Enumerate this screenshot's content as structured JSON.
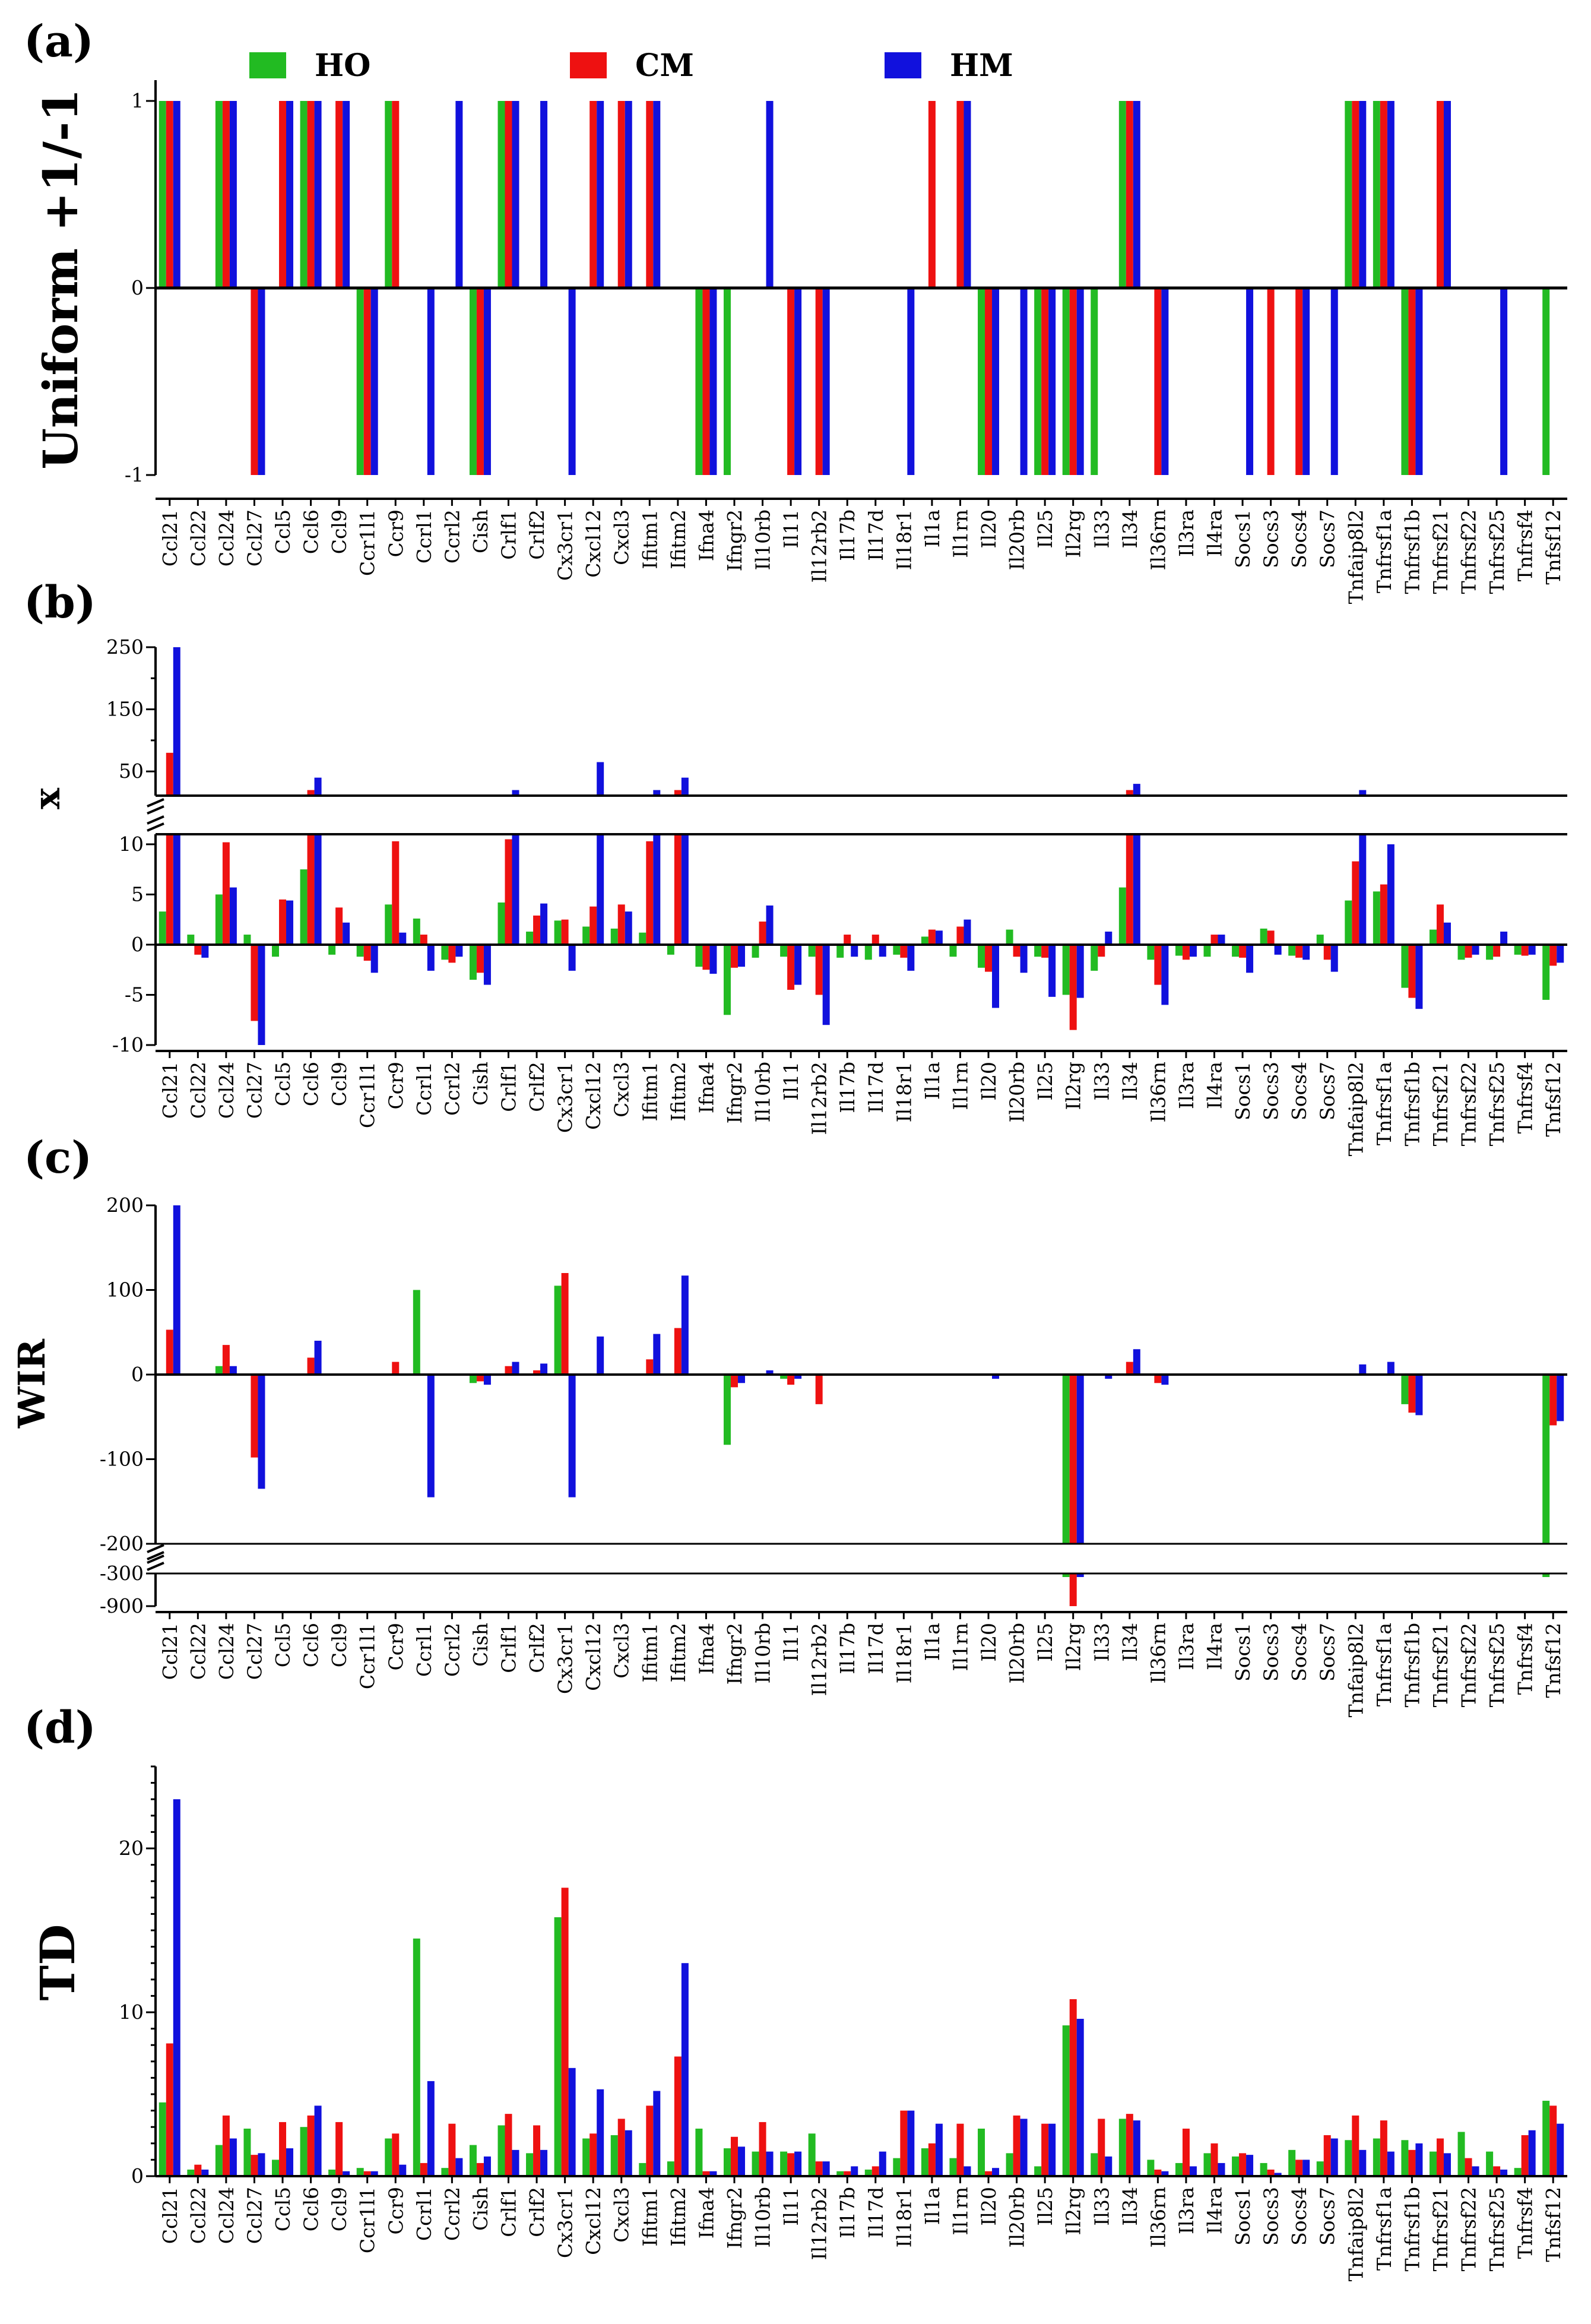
{
  "legend": [
    {
      "name": "HO",
      "color": "#22bb22"
    },
    {
      "name": "CM",
      "color": "#ee1111"
    },
    {
      "name": "HM",
      "color": "#1111dd"
    }
  ],
  "chart_data": [
    {
      "panel": "(a)",
      "type": "bar",
      "ylabel": "Uniform +1/-1",
      "ylim": [
        -1,
        1
      ],
      "yticks": [
        1,
        0,
        -1
      ],
      "categories": [
        "Ccl21",
        "Ccl22",
        "Ccl24",
        "Ccl27",
        "Ccl5",
        "Ccl6",
        "Ccl9",
        "Ccr1l1",
        "Ccr9",
        "Ccrl1",
        "Ccrl2",
        "Cish",
        "Crlf1",
        "Crlf2",
        "Cx3cr1",
        "Cxcl12",
        "Cxcl3",
        "Ifitm1",
        "Ifitm2",
        "Ifna4",
        "Ifngr2",
        "Il10rb",
        "Il11",
        "Il12rb2",
        "Il17b",
        "Il17d",
        "Il18r1",
        "Il1a",
        "Il1rn",
        "Il20",
        "Il20rb",
        "Il25",
        "Il2rg",
        "Il33",
        "Il34",
        "Il36rn",
        "Il3ra",
        "Il4ra",
        "Socs1",
        "Socs3",
        "Socs4",
        "Socs7",
        "Tnfaip8l2",
        "Tnfrsf1a",
        "Tnfrsf1b",
        "Tnfrsf21",
        "Tnfrsf22",
        "Tnfrsf25",
        "Tnfrsf4",
        "Tnfsf12"
      ],
      "series": [
        {
          "name": "HO",
          "values": [
            1,
            0,
            1,
            0,
            0,
            1,
            0,
            -1,
            1,
            0,
            0,
            -1,
            1,
            0,
            0,
            0,
            0,
            0,
            0,
            -1,
            -1,
            0,
            0,
            0,
            0,
            0,
            0,
            0,
            0,
            -1,
            0,
            -1,
            -1,
            -1,
            1,
            0,
            0,
            0,
            0,
            0,
            0,
            0,
            1,
            1,
            -1,
            0,
            0,
            0,
            0,
            -1
          ]
        },
        {
          "name": "CM",
          "values": [
            1,
            0,
            1,
            -1,
            1,
            1,
            1,
            -1,
            1,
            0,
            0,
            -1,
            1,
            0,
            0,
            1,
            1,
            1,
            0,
            -1,
            0,
            0,
            -1,
            -1,
            0,
            0,
            0,
            1,
            1,
            -1,
            0,
            -1,
            -1,
            0,
            1,
            -1,
            0,
            0,
            0,
            -1,
            -1,
            0,
            1,
            1,
            -1,
            1,
            0,
            0,
            0,
            0
          ]
        },
        {
          "name": "HM",
          "values": [
            1,
            0,
            1,
            -1,
            1,
            1,
            1,
            -1,
            0,
            -1,
            1,
            -1,
            1,
            1,
            -1,
            1,
            1,
            1,
            0,
            -1,
            0,
            1,
            -1,
            -1,
            0,
            0,
            -1,
            0,
            1,
            -1,
            -1,
            -1,
            -1,
            0,
            1,
            -1,
            0,
            0,
            -1,
            0,
            -1,
            -1,
            1,
            1,
            -1,
            1,
            0,
            -1,
            0,
            0
          ]
        }
      ]
    },
    {
      "panel": "(b)",
      "type": "bar",
      "ylabel": "x",
      "y_axis_break": true,
      "ylim_lower": [
        -10,
        11
      ],
      "ylim_upper": [
        11,
        250
      ],
      "yticks_lower": [
        10,
        5,
        0,
        -5,
        -10
      ],
      "yticks_upper": [
        250,
        150,
        50
      ],
      "categories": [
        "Ccl21",
        "Ccl22",
        "Ccl24",
        "Ccl27",
        "Ccl5",
        "Ccl6",
        "Ccl9",
        "Ccr1l1",
        "Ccr9",
        "Ccrl1",
        "Ccrl2",
        "Cish",
        "Crlf1",
        "Crlf2",
        "Cx3cr1",
        "Cxcl12",
        "Cxcl3",
        "Ifitm1",
        "Ifitm2",
        "Ifna4",
        "Ifngr2",
        "Il10rb",
        "Il11",
        "Il12rb2",
        "Il17b",
        "Il17d",
        "Il18r1",
        "Il1a",
        "Il1rn",
        "Il20",
        "Il20rb",
        "Il25",
        "Il2rg",
        "Il33",
        "Il34",
        "Il36rn",
        "Il3ra",
        "Il4ra",
        "Socs1",
        "Socs3",
        "Socs4",
        "Socs7",
        "Tnfaip8l2",
        "Tnfrsf1a",
        "Tnfrsf1b",
        "Tnfrsf21",
        "Tnfrsf22",
        "Tnfrsf25",
        "Tnfrsf4",
        "Tnfsf12"
      ],
      "series": [
        {
          "name": "HO",
          "values": [
            3.3,
            1,
            5,
            1,
            -1.2,
            7.5,
            -1,
            -1.2,
            4,
            2.6,
            -1.5,
            -3.5,
            4.2,
            1.3,
            2.4,
            1.8,
            1.6,
            1.2,
            -1,
            -2.2,
            -7,
            -1.3,
            -1.2,
            -1.2,
            -1.3,
            -1.5,
            -1,
            0.8,
            -1.2,
            -2.3,
            1.5,
            -1.2,
            -5,
            -2.6,
            5.7,
            -1.5,
            -1.1,
            -1.2,
            -1.2,
            1.6,
            -1.1,
            1,
            4.4,
            5.3,
            -4.3,
            1.5,
            -1.5,
            -1.5,
            -1,
            -5.5
          ]
        },
        {
          "name": "CM",
          "values": [
            80,
            -1,
            10.2,
            -7.6,
            4.5,
            20,
            3.7,
            -1.6,
            10.3,
            1,
            -1.8,
            -2.8,
            10.5,
            2.9,
            2.5,
            3.8,
            4,
            10.3,
            20,
            -2.5,
            -2.3,
            2.3,
            -4.5,
            -5,
            1,
            1,
            -1.3,
            1.5,
            1.8,
            -2.7,
            -1.2,
            -1.3,
            -8.5,
            -1.2,
            20,
            -4,
            -1.5,
            1,
            -1.3,
            1.4,
            -1.3,
            -1.5,
            8.3,
            6,
            -5.3,
            4,
            -1.3,
            -1.2,
            -1.1,
            -2.1
          ]
        },
        {
          "name": "HM",
          "values": [
            250,
            -1.3,
            5.7,
            -10,
            4.4,
            40,
            2.2,
            -2.8,
            1.2,
            -2.6,
            -1.2,
            -4,
            20,
            4.1,
            -2.6,
            65,
            3.3,
            20,
            40,
            -2.9,
            -2.2,
            3.9,
            -4,
            -8,
            -1.2,
            -1.2,
            -2.6,
            1.4,
            2.5,
            -6.3,
            -2.8,
            -5.2,
            -5.3,
            1.3,
            30,
            -6,
            -1.2,
            1,
            -2.8,
            -1,
            -1.5,
            -2.7,
            20,
            10,
            -6.4,
            2.2,
            -1,
            1.3,
            -1,
            -1.8
          ]
        }
      ]
    },
    {
      "panel": "(c)",
      "type": "bar",
      "ylabel": "WIR",
      "y_axis_break": true,
      "ylim_upper": [
        -200,
        200
      ],
      "ylim_lower": [
        -900,
        -300
      ],
      "yticks_upper": [
        200,
        100,
        0,
        -100,
        -200
      ],
      "yticks_lower": [
        -300,
        -900
      ],
      "categories": [
        "Ccl21",
        "Ccl22",
        "Ccl24",
        "Ccl27",
        "Ccl5",
        "Ccl6",
        "Ccl9",
        "Ccr1l1",
        "Ccr9",
        "Ccrl1",
        "Ccrl2",
        "Cish",
        "Crlf1",
        "Crlf2",
        "Cx3cr1",
        "Cxcl12",
        "Cxcl3",
        "Ifitm1",
        "Ifitm2",
        "Ifna4",
        "Ifngr2",
        "Il10rb",
        "Il11",
        "Il12rb2",
        "Il17b",
        "Il17d",
        "Il18r1",
        "Il1a",
        "Il1rn",
        "Il20",
        "Il20rb",
        "Il25",
        "Il2rg",
        "Il33",
        "Il34",
        "Il36rn",
        "Il3ra",
        "Il4ra",
        "Socs1",
        "Socs3",
        "Socs4",
        "Socs7",
        "Tnfaip8l2",
        "Tnfrsf1a",
        "Tnfrsf1b",
        "Tnfrsf21",
        "Tnfrsf22",
        "Tnfrsf25",
        "Tnfrsf4",
        "Tnfsf12"
      ],
      "series": [
        {
          "name": "HO",
          "values": [
            0,
            0,
            10,
            0,
            0,
            0,
            0,
            0,
            0,
            100,
            0,
            -10,
            0,
            0,
            105,
            0,
            0,
            0,
            0,
            0,
            -83,
            0,
            -5,
            0,
            0,
            0,
            0,
            0,
            0,
            0,
            0,
            0,
            -320,
            0,
            0,
            0,
            0,
            0,
            0,
            0,
            0,
            0,
            0,
            0,
            -35,
            0,
            0,
            0,
            0,
            -300
          ]
        },
        {
          "name": "CM",
          "values": [
            53,
            0,
            35,
            -98,
            0,
            20,
            0,
            0,
            15,
            0,
            0,
            -8,
            10,
            5,
            120,
            0,
            0,
            18,
            55,
            0,
            -15,
            0,
            -12,
            -35,
            0,
            0,
            0,
            0,
            0,
            0,
            0,
            0,
            -900,
            0,
            15,
            -10,
            0,
            0,
            0,
            0,
            0,
            0,
            0,
            0,
            -45,
            0,
            0,
            0,
            0,
            -60
          ]
        },
        {
          "name": "HM",
          "values": [
            200,
            0,
            10,
            -135,
            0,
            40,
            0,
            0,
            0,
            -145,
            0,
            -12,
            15,
            13,
            -145,
            45,
            0,
            48,
            117,
            0,
            -10,
            5,
            -5,
            0,
            0,
            0,
            0,
            0,
            0,
            -5,
            0,
            0,
            -300,
            -5,
            30,
            -12,
            0,
            0,
            0,
            0,
            0,
            0,
            12,
            15,
            -48,
            0,
            0,
            0,
            0,
            -55
          ]
        }
      ]
    },
    {
      "panel": "(d)",
      "type": "bar",
      "ylabel": "TD",
      "ylim": [
        0,
        25
      ],
      "yticks": [
        20,
        10,
        0
      ],
      "categories": [
        "Ccl21",
        "Ccl22",
        "Ccl24",
        "Ccl27",
        "Ccl5",
        "Ccl6",
        "Ccl9",
        "Ccr1l1",
        "Ccr9",
        "Ccrl1",
        "Ccrl2",
        "Cish",
        "Crlf1",
        "Crlf2",
        "Cx3cr1",
        "Cxcl12",
        "Cxcl3",
        "Ifitm1",
        "Ifitm2",
        "Ifna4",
        "Ifngr2",
        "Il10rb",
        "Il11",
        "Il12rb2",
        "Il17b",
        "Il17d",
        "Il18r1",
        "Il1a",
        "Il1rn",
        "Il20",
        "Il20rb",
        "Il25",
        "Il2rg",
        "Il33",
        "Il34",
        "Il36rn",
        "Il3ra",
        "Il4ra",
        "Socs1",
        "Socs3",
        "Socs4",
        "Socs7",
        "Tnfaip8l2",
        "Tnfrsf1a",
        "Tnfrsf1b",
        "Tnfrsf21",
        "Tnfrsf22",
        "Tnfrsf25",
        "Tnfrsf4",
        "Tnfsf12"
      ],
      "series": [
        {
          "name": "HO",
          "values": [
            4.5,
            0.4,
            1.9,
            2.9,
            1,
            3,
            0.4,
            0.5,
            2.3,
            14.5,
            0.5,
            1.9,
            3.1,
            1.4,
            15.8,
            2.3,
            2.5,
            0.8,
            0.9,
            2.9,
            1.7,
            1.5,
            1.5,
            2.6,
            0.3,
            0.4,
            1.1,
            1.7,
            1.1,
            2.9,
            1.4,
            0.6,
            9.2,
            1.4,
            3.5,
            1,
            0.8,
            1.4,
            1.2,
            0.8,
            1.6,
            0.9,
            2.2,
            2.3,
            2.2,
            1.5,
            2.7,
            1.5,
            0.5,
            4.6
          ]
        },
        {
          "name": "CM",
          "values": [
            8.1,
            0.7,
            3.7,
            1.3,
            3.3,
            3.7,
            3.3,
            0.3,
            2.6,
            0.8,
            3.2,
            0.8,
            3.8,
            3.1,
            17.6,
            2.6,
            3.5,
            4.3,
            7.3,
            0.3,
            2.4,
            3.3,
            1.4,
            0.9,
            0.3,
            0.6,
            4,
            2,
            3.2,
            0.3,
            3.7,
            3.2,
            10.8,
            3.5,
            3.8,
            0.4,
            2.9,
            2,
            1.4,
            0.4,
            1,
            2.5,
            3.7,
            3.4,
            1.6,
            2.3,
            1.1,
            0.6,
            2.5,
            4.3
          ]
        },
        {
          "name": "HM",
          "values": [
            23,
            0.4,
            2.3,
            1.4,
            1.7,
            4.3,
            0.3,
            0.3,
            0.7,
            5.8,
            1.1,
            1.2,
            1.6,
            1.6,
            6.6,
            5.3,
            2.8,
            5.2,
            13,
            0.3,
            1.8,
            1.5,
            1.5,
            0.9,
            0.6,
            1.5,
            4,
            3.2,
            0.6,
            0.5,
            3.5,
            3.2,
            9.6,
            1.2,
            3.4,
            0.3,
            0.6,
            0.8,
            1.3,
            0.2,
            1,
            2.3,
            1.6,
            1.5,
            2,
            1.4,
            0.6,
            0.4,
            2.8,
            3.2
          ]
        }
      ]
    }
  ]
}
